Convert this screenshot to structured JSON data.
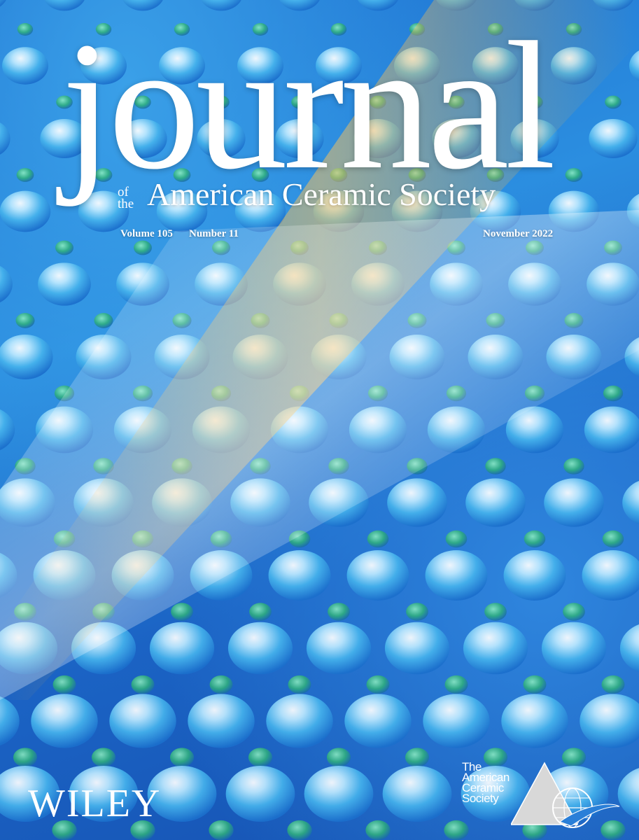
{
  "masthead": {
    "title": "journal",
    "of": "of",
    "the": "the",
    "subtitle": "American Ceramic Society"
  },
  "issue": {
    "volume": "Volume 105",
    "number": "Number 11",
    "date": "November 2022"
  },
  "publisher": {
    "name": "WILEY"
  },
  "society_logo": {
    "lines": [
      "The",
      "American",
      "Ceramic",
      "Society"
    ],
    "icons": [
      "triangle-icon",
      "globe-icon",
      "swoosh-icon"
    ]
  },
  "colors": {
    "background": "#1a5fc0",
    "dome": "#4fc0f0",
    "highlight": "#ffffff",
    "accent_dot": "#2fb07a",
    "band": "#f0b040",
    "swoosh": "#2a7fd8"
  }
}
